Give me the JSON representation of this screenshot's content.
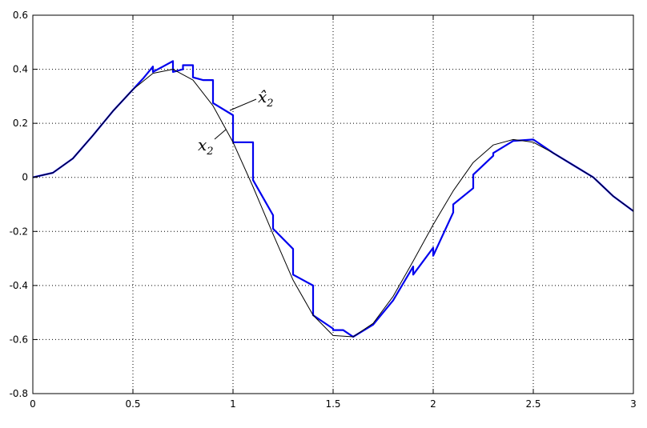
{
  "chart_data": {
    "type": "line",
    "title": "",
    "xlabel": "",
    "ylabel": "",
    "xlim": [
      0,
      3
    ],
    "ylim": [
      -0.8,
      0.6
    ],
    "grid": true,
    "x_ticks": [
      0,
      0.5,
      1,
      1.5,
      2,
      2.5,
      3
    ],
    "x_tick_labels": [
      "0",
      "0.5",
      "1",
      "1.5",
      "2",
      "2.5",
      "3"
    ],
    "y_ticks": [
      -0.8,
      -0.6,
      -0.4,
      -0.2,
      0,
      0.2,
      0.4,
      0.6
    ],
    "y_tick_labels": [
      "-0.8",
      "-0.6",
      "-0.4",
      "-0.2",
      "0",
      "0.2",
      "0.4",
      "0.6"
    ],
    "series": [
      {
        "color": "#000000",
        "x": [
          0,
          0.1,
          0.2,
          0.3,
          0.4,
          0.5,
          0.6,
          0.7,
          0.8,
          0.9,
          1.0,
          1.1,
          1.2,
          1.3,
          1.4,
          1.5,
          1.6,
          1.7,
          1.8,
          1.9,
          2.0,
          2.1,
          2.2,
          2.3,
          2.4,
          2.5,
          2.6,
          2.7,
          2.8,
          2.9,
          3.0
        ],
        "y": [
          0,
          0.017,
          0.07,
          0.155,
          0.245,
          0.325,
          0.385,
          0.4,
          0.36,
          0.265,
          0.13,
          -0.035,
          -0.21,
          -0.38,
          -0.51,
          -0.585,
          -0.59,
          -0.54,
          -0.44,
          -0.31,
          -0.175,
          -0.05,
          0.055,
          0.12,
          0.14,
          0.13,
          0.09,
          0.045,
          0.0,
          -0.07,
          -0.125
        ]
      },
      {
        "color": "#0000ee",
        "x": [
          0,
          0.1,
          0.2,
          0.3,
          0.4,
          0.5,
          0.55,
          0.6,
          0.6,
          0.65,
          0.7,
          0.7,
          0.75,
          0.75,
          0.8,
          0.8,
          0.85,
          0.9,
          0.9,
          1.0,
          1.0,
          1.1,
          1.1,
          1.2,
          1.2,
          1.3,
          1.3,
          1.4,
          1.4,
          1.5,
          1.5,
          1.55,
          1.6,
          1.7,
          1.8,
          1.9,
          1.9,
          2.0,
          2.0,
          2.1,
          2.1,
          2.2,
          2.2,
          2.3,
          2.3,
          2.4,
          2.5,
          2.6,
          2.7,
          2.8,
          2.9,
          3.0
        ],
        "y": [
          0,
          0.017,
          0.07,
          0.155,
          0.245,
          0.325,
          0.365,
          0.41,
          0.39,
          0.41,
          0.43,
          0.39,
          0.4,
          0.415,
          0.415,
          0.37,
          0.36,
          0.36,
          0.275,
          0.23,
          0.13,
          0.13,
          -0.01,
          -0.14,
          -0.19,
          -0.265,
          -0.36,
          -0.4,
          -0.51,
          -0.56,
          -0.565,
          -0.565,
          -0.59,
          -0.545,
          -0.455,
          -0.33,
          -0.36,
          -0.26,
          -0.29,
          -0.13,
          -0.1,
          -0.04,
          0.01,
          0.08,
          0.09,
          0.135,
          0.14,
          0.09,
          0.045,
          0.0,
          -0.07,
          -0.125
        ]
      }
    ],
    "annotations": [
      {
        "text": "x̂",
        "sub": "2",
        "series": 1
      },
      {
        "text": "x",
        "sub": "2",
        "series": 0
      }
    ]
  }
}
